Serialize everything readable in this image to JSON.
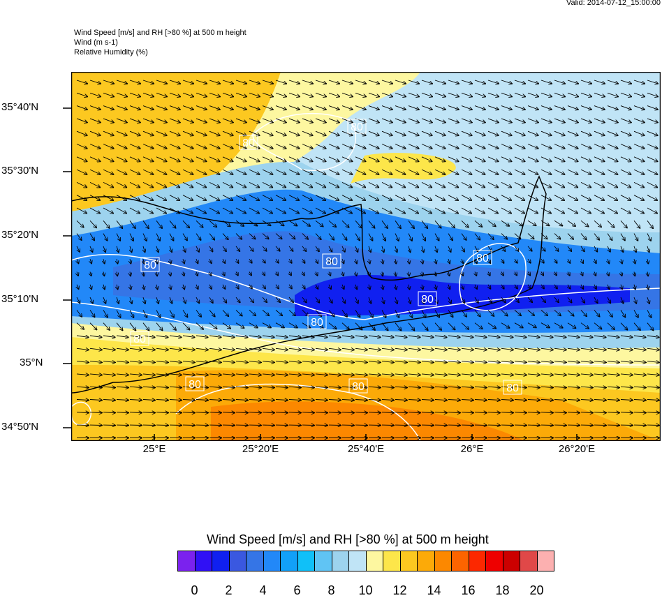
{
  "valid": "Valid: 2014-07-12_15:00:00",
  "header": [
    "Wind Speed [m/s] and RH [>80 %] at 500 m height",
    "Wind   (m s-1)",
    "Relative Humidity    (%)"
  ],
  "lat_labels": [
    "35°40'N",
    "35°30'N",
    "35°20'N",
    "35°10'N",
    "35°N",
    "34°50'N"
  ],
  "lon_labels": [
    "25°E",
    "25°20'E",
    "25°40'E",
    "26°E",
    "26°20'E"
  ],
  "contour_label": "80",
  "colorbar": {
    "title": "Wind Speed [m/s] and RH [>80 %] at 500 m height",
    "labels": [
      "0",
      "2",
      "4",
      "6",
      "8",
      "10",
      "12",
      "14",
      "16",
      "18",
      "20"
    ],
    "colors": [
      "#7b22ee",
      "#3010f5",
      "#1020f0",
      "#3a58e0",
      "#3575e6",
      "#2288f8",
      "#12a0f8",
      "#10c0f8",
      "#60c4f4",
      "#9dd3ee",
      "#c0e4f6",
      "#fdf7a0",
      "#fde64a",
      "#fcc820",
      "#fcaa08",
      "#fc8800",
      "#fc6400",
      "#fc2800",
      "#ee0000",
      "#cc0000",
      "#e04848",
      "#fcb0b0"
    ]
  }
}
